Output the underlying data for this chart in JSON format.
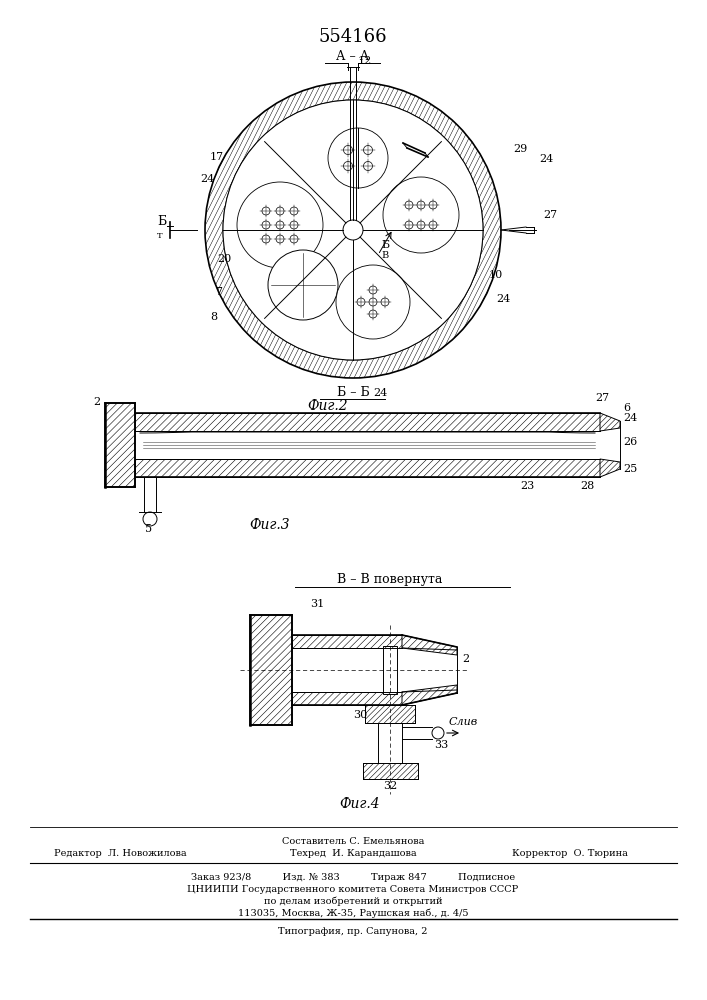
{
  "patent_number": "554166",
  "fig2_label": "Фиг.2",
  "fig3_label": "Фиг.3",
  "fig4_label": "Фиг.4",
  "section_aa": "А – А",
  "section_bb": "Б – Б",
  "section_vv": "В – В повернута",
  "footer_col1_line1": "Составитель С. Емельянова",
  "footer_col1_line2": "Редактор  Л. Новожилова",
  "footer_col1_line3": "Техред  И. Карандашова",
  "footer_col1_line4": "Корректор  О. Тюрина",
  "footer_line3": "Заказ 923/8          Изд. № 383          Тираж 847          Подписное",
  "footer_line4": "ЦНИИПИ Государственного комитета Совета Министров СССР",
  "footer_line5": "по делам изобретений и открытий",
  "footer_line6": "113035, Москва, Ж-35, Раушская наб., д. 4/5",
  "footer_line7": "Типография, пр. Сапунова, 2",
  "bg_color": "#ffffff",
  "line_color": "#000000"
}
